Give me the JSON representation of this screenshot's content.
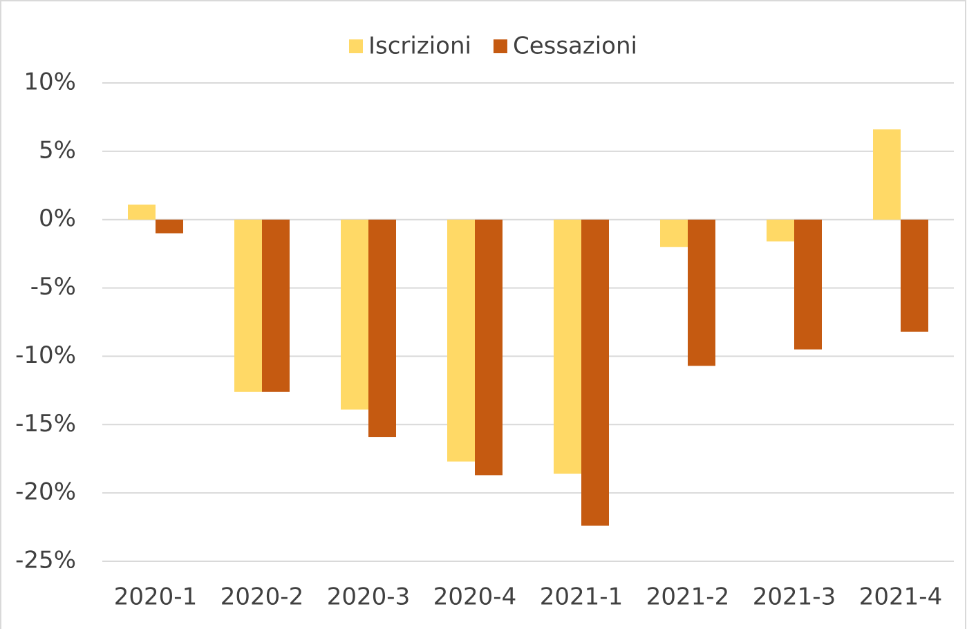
{
  "chart_data": {
    "type": "bar",
    "categories": [
      "2020-1",
      "2020-2",
      "2020-3",
      "2020-4",
      "2021-1",
      "2021-2",
      "2021-3",
      "2021-4"
    ],
    "series": [
      {
        "name": "Iscrizioni",
        "color": "#FFD966",
        "values": [
          1.1,
          -12.6,
          -13.9,
          -17.7,
          -18.6,
          -2.0,
          -1.6,
          6.6
        ]
      },
      {
        "name": "Cessazioni",
        "color": "#C55A11",
        "values": [
          -1.0,
          -12.6,
          -15.9,
          -18.7,
          -22.4,
          -10.7,
          -9.5,
          -8.2
        ]
      }
    ],
    "ylim": [
      -25,
      10
    ],
    "yticks": [
      {
        "value": -25,
        "label": "-25%"
      },
      {
        "value": -20,
        "label": "-20%"
      },
      {
        "value": -15,
        "label": "-15%"
      },
      {
        "value": -10,
        "label": "-10%"
      },
      {
        "value": -5,
        "label": "-5%"
      },
      {
        "value": 0,
        "label": "0%"
      },
      {
        "value": 5,
        "label": "5%"
      },
      {
        "value": 10,
        "label": "10%"
      }
    ],
    "grid": true,
    "legend": "top"
  }
}
